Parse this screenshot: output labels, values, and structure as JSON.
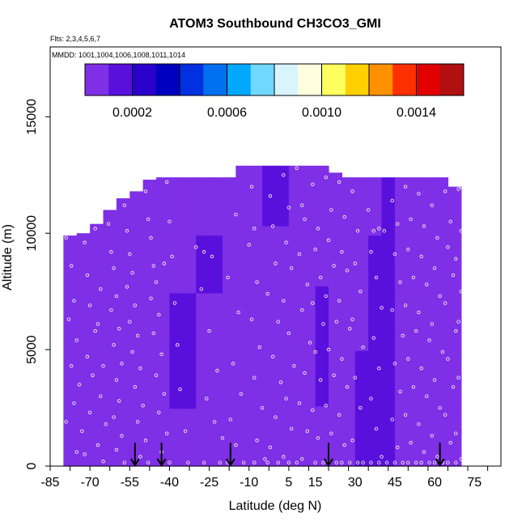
{
  "chart_data": {
    "type": "heatmap",
    "title": "ATOM3 Southbound CH3CO3_GMI",
    "subtitle_flights": "Flts: 2,3,4,5,6,7",
    "subtitle_dates": "MMDD: 1001,1004,1006,1008,1011,1014",
    "xlabel": "Latitude (deg N)",
    "ylabel": "Altitude (m)",
    "xlim": [
      -85,
      85
    ],
    "ylim": [
      0,
      18000
    ],
    "x_ticks": [
      -85,
      -70,
      -55,
      -40,
      -25,
      -10,
      5,
      15,
      30,
      45,
      60,
      75
    ],
    "y_ticks": [
      0,
      5000,
      10000,
      15000
    ],
    "colorbar": {
      "range": [
        0,
        0.0016
      ],
      "tick_values": [
        0.0002,
        0.0006,
        0.001,
        0.0014
      ],
      "tick_labels": [
        "0.0002",
        "0.0006",
        "0.0010",
        "0.0014"
      ],
      "colors": [
        "#7f2fe6",
        "#5a10dc",
        "#2a00cc",
        "#0000c0",
        "#0030e0",
        "#0070f0",
        "#00a8ff",
        "#70d8ff",
        "#d8f4ff",
        "#ffffe0",
        "#ffff60",
        "#ffd000",
        "#ff9000",
        "#ff3000",
        "#e00000",
        "#b01010"
      ]
    },
    "flight_arrow_latitudes": [
      -53,
      -43,
      -17,
      20,
      62
    ],
    "field_columns": [
      {
        "lat": [
          -80,
          -75
        ],
        "top": 9900,
        "values": [
          5e-05,
          5e-05,
          5e-05,
          4e-05,
          5e-05
        ]
      },
      {
        "lat": [
          -75,
          -70
        ],
        "top": 10000,
        "values": [
          5e-05,
          4e-05,
          5e-05,
          5e-05,
          5e-05
        ]
      },
      {
        "lat": [
          -70,
          -65
        ],
        "top": 10400,
        "values": [
          5e-05,
          5e-05,
          5e-05,
          4e-05,
          5e-05
        ]
      },
      {
        "lat": [
          -65,
          -60
        ],
        "top": 11000,
        "values": [
          5e-05,
          5e-05,
          4e-05,
          5e-05,
          5e-05
        ]
      },
      {
        "lat": [
          -60,
          -55
        ],
        "top": 11500,
        "values": [
          5e-05,
          4e-05,
          4e-05,
          5e-05,
          5e-05
        ]
      },
      {
        "lat": [
          -55,
          -50
        ],
        "top": 11800,
        "values": [
          4e-05,
          4e-05,
          5e-05,
          5e-05,
          4e-05
        ]
      },
      {
        "lat": [
          -50,
          -45
        ],
        "top": 12300,
        "values": [
          4e-05,
          5e-05,
          5e-05,
          4e-05,
          4e-05
        ]
      },
      {
        "lat": [
          -45,
          -40
        ],
        "top": 12400,
        "values": [
          4e-05,
          5e-05,
          5e-05,
          5e-05,
          4e-05
        ]
      },
      {
        "lat": [
          -40,
          -35
        ],
        "top": 12400,
        "values": [
          4e-05,
          0.00012,
          0.00014,
          8e-05,
          5e-05
        ]
      },
      {
        "lat": [
          -35,
          -30
        ],
        "top": 12400,
        "values": [
          5e-05,
          0.0001,
          0.00012,
          9e-05,
          6e-05
        ]
      },
      {
        "lat": [
          -30,
          -25
        ],
        "top": 12400,
        "values": [
          5e-05,
          6e-05,
          6e-05,
          0.0001,
          6e-05
        ]
      },
      {
        "lat": [
          -25,
          -20
        ],
        "top": 12400,
        "values": [
          5e-05,
          6e-05,
          5e-05,
          0.00018,
          6e-05
        ]
      },
      {
        "lat": [
          -20,
          -15
        ],
        "top": 12400,
        "values": [
          9e-05,
          6e-05,
          6e-05,
          8e-05,
          6e-05
        ]
      },
      {
        "lat": [
          -15,
          -10
        ],
        "top": 12900,
        "values": [
          6e-05,
          6e-05,
          7e-05,
          7e-05,
          7e-05
        ]
      },
      {
        "lat": [
          -10,
          -5
        ],
        "top": 12900,
        "values": [
          6e-05,
          7e-05,
          7e-05,
          8e-05,
          7e-05
        ]
      },
      {
        "lat": [
          -5,
          0
        ],
        "top": 12900,
        "values": [
          6e-05,
          7e-05,
          8e-05,
          9e-05,
          0.0001
        ]
      },
      {
        "lat": [
          0,
          5
        ],
        "top": 12900,
        "values": [
          6e-05,
          7e-05,
          8e-05,
          9e-05,
          0.0001
        ]
      },
      {
        "lat": [
          5,
          10
        ],
        "top": 12900,
        "values": [
          6e-05,
          7e-05,
          8e-05,
          8e-05,
          9e-05
        ]
      },
      {
        "lat": [
          10,
          15
        ],
        "top": 12900,
        "values": [
          7e-05,
          8e-05,
          9e-05,
          8e-05,
          8e-05
        ]
      },
      {
        "lat": [
          15,
          20
        ],
        "top": 12900,
        "values": [
          8e-05,
          0.0001,
          0.00011,
          9e-05,
          7e-05
        ]
      },
      {
        "lat": [
          20,
          25
        ],
        "top": 12600,
        "values": [
          9e-05,
          8e-05,
          8e-05,
          8e-05,
          6e-05
        ]
      },
      {
        "lat": [
          25,
          30
        ],
        "top": 12400,
        "values": [
          7e-05,
          7e-05,
          7e-05,
          7e-05,
          6e-05
        ]
      },
      {
        "lat": [
          30,
          35
        ],
        "top": 12400,
        "values": [
          0.0001,
          0.0001,
          9e-05,
          8e-05,
          7e-05
        ]
      },
      {
        "lat": [
          35,
          40
        ],
        "top": 12400,
        "values": [
          0.00016,
          0.00014,
          0.00012,
          0.00011,
          9e-05
        ]
      },
      {
        "lat": [
          40,
          45
        ],
        "top": 12400,
        "values": [
          0.00013,
          0.00013,
          0.00012,
          0.00012,
          0.0001
        ]
      },
      {
        "lat": [
          45,
          50
        ],
        "top": 12400,
        "values": [
          7e-05,
          7e-05,
          7e-05,
          7e-05,
          6e-05
        ]
      },
      {
        "lat": [
          50,
          55
        ],
        "top": 12400,
        "values": [
          6e-05,
          6e-05,
          6e-05,
          6e-05,
          5e-05
        ]
      },
      {
        "lat": [
          55,
          60
        ],
        "top": 12400,
        "values": [
          6e-05,
          5e-05,
          5e-05,
          5e-05,
          5e-05
        ]
      },
      {
        "lat": [
          60,
          65
        ],
        "top": 12400,
        "values": [
          5e-05,
          5e-05,
          5e-05,
          5e-05,
          5e-05
        ]
      },
      {
        "lat": [
          65,
          70
        ],
        "top": 12000,
        "values": [
          4e-05,
          4e-05,
          4e-05,
          4e-05,
          4e-05
        ]
      }
    ],
    "observation_points": [
      [
        -79,
        9800
      ],
      [
        -77,
        8600
      ],
      [
        -76,
        7100
      ],
      [
        -78,
        6300
      ],
      [
        -75,
        5400
      ],
      [
        -77,
        4300
      ],
      [
        -74,
        3500
      ],
      [
        -76,
        2700
      ],
      [
        -73,
        1500
      ],
      [
        -75,
        600
      ],
      [
        -79,
        1900
      ],
      [
        -72,
        9600
      ],
      [
        -71,
        8200
      ],
      [
        -70,
        6900
      ],
      [
        -68,
        5800
      ],
      [
        -71,
        4700
      ],
      [
        -69,
        3900
      ],
      [
        -70,
        2300
      ],
      [
        -67,
        900
      ],
      [
        -72,
        500
      ],
      [
        -68,
        10200
      ],
      [
        -66,
        7600
      ],
      [
        -67,
        6100
      ],
      [
        -65,
        4300
      ],
      [
        -66,
        3000
      ],
      [
        -64,
        1800
      ],
      [
        -65,
        200
      ],
      [
        -63,
        10400
      ],
      [
        -62,
        9200
      ],
      [
        -61,
        8500
      ],
      [
        -60,
        7300
      ],
      [
        -62,
        6700
      ],
      [
        -59,
        5900
      ],
      [
        -61,
        5200
      ],
      [
        -58,
        4400
      ],
      [
        -60,
        3700
      ],
      [
        -59,
        2800
      ],
      [
        -61,
        2100
      ],
      [
        -58,
        1300
      ],
      [
        -60,
        700
      ],
      [
        -57,
        150
      ],
      [
        -57,
        11200
      ],
      [
        -56,
        10100
      ],
      [
        -55,
        9100
      ],
      [
        -54,
        8300
      ],
      [
        -56,
        7700
      ],
      [
        -53,
        6900
      ],
      [
        -55,
        6200
      ],
      [
        -52,
        5600
      ],
      [
        -54,
        4900
      ],
      [
        -51,
        4200
      ],
      [
        -53,
        3400
      ],
      [
        -50,
        2600
      ],
      [
        -52,
        1900
      ],
      [
        -49,
        1100
      ],
      [
        -51,
        400
      ],
      [
        -48,
        150
      ],
      [
        -49,
        11800
      ],
      [
        -48,
        10600
      ],
      [
        -47,
        9800
      ],
      [
        -46,
        8600
      ],
      [
        -45,
        7900
      ],
      [
        -47,
        7200
      ],
      [
        -44,
        6500
      ],
      [
        -46,
        5700
      ],
      [
        -43,
        4800
      ],
      [
        -45,
        3900
      ],
      [
        -42,
        3100
      ],
      [
        -44,
        2300
      ],
      [
        -41,
        1400
      ],
      [
        -43,
        600
      ],
      [
        -40,
        150
      ],
      [
        -41,
        12200
      ],
      [
        -40,
        10500
      ],
      [
        -39,
        9000
      ],
      [
        -42,
        8700
      ],
      [
        -38,
        7000
      ],
      [
        -37,
        5200
      ],
      [
        -36,
        3300
      ],
      [
        -34,
        1500
      ],
      [
        -33,
        150
      ],
      [
        -30,
        9400
      ],
      [
        -27,
        9200
      ],
      [
        -24,
        9000
      ],
      [
        -28,
        7600
      ],
      [
        -25,
        5800
      ],
      [
        -22,
        4100
      ],
      [
        -26,
        2900
      ],
      [
        -23,
        1900
      ],
      [
        -20,
        1200
      ],
      [
        -27,
        150
      ],
      [
        -21,
        150
      ],
      [
        -17,
        12500
      ],
      [
        -15,
        10800
      ],
      [
        -18,
        8100
      ],
      [
        -14,
        6600
      ],
      [
        -16,
        4400
      ],
      [
        -13,
        3100
      ],
      [
        -17,
        2000
      ],
      [
        -15,
        900
      ],
      [
        -12,
        150
      ],
      [
        -18,
        150
      ],
      [
        -9,
        12000
      ],
      [
        -8,
        10200
      ],
      [
        -10,
        9500
      ],
      [
        -7,
        7900
      ],
      [
        -9,
        6300
      ],
      [
        -6,
        5100
      ],
      [
        -8,
        3800
      ],
      [
        -5,
        2500
      ],
      [
        -7,
        1100
      ],
      [
        -4,
        300
      ],
      [
        -8,
        150
      ],
      [
        -2,
        11600
      ],
      [
        -1,
        10300
      ],
      [
        0,
        8700
      ],
      [
        -3,
        7400
      ],
      [
        1,
        6200
      ],
      [
        -1,
        4700
      ],
      [
        2,
        3600
      ],
      [
        0,
        2100
      ],
      [
        -2,
        800
      ],
      [
        1,
        150
      ],
      [
        -3,
        150
      ],
      [
        3,
        12500
      ],
      [
        5,
        11100
      ],
      [
        4,
        9600
      ],
      [
        6,
        8500
      ],
      [
        3,
        7100
      ],
      [
        5,
        5700
      ],
      [
        7,
        4300
      ],
      [
        4,
        2900
      ],
      [
        6,
        1600
      ],
      [
        3,
        400
      ],
      [
        5,
        150
      ],
      [
        8,
        12800
      ],
      [
        10,
        11200
      ],
      [
        11,
        10600
      ],
      [
        9,
        9100
      ],
      [
        12,
        7800
      ],
      [
        10,
        6700
      ],
      [
        13,
        5300
      ],
      [
        11,
        4000
      ],
      [
        9,
        2700
      ],
      [
        12,
        1500
      ],
      [
        10,
        300
      ],
      [
        8,
        150
      ],
      [
        14,
        12100
      ],
      [
        16,
        10200
      ],
      [
        15,
        9300
      ],
      [
        17,
        8100
      ],
      [
        14,
        7000
      ],
      [
        18,
        6100
      ],
      [
        15,
        4900
      ],
      [
        17,
        3700
      ],
      [
        14,
        2400
      ],
      [
        16,
        1200
      ],
      [
        15,
        150
      ],
      [
        18,
        150
      ],
      [
        19,
        12400
      ],
      [
        21,
        11000
      ],
      [
        20,
        9700
      ],
      [
        22,
        8600
      ],
      [
        19,
        7300
      ],
      [
        23,
        6200
      ],
      [
        20,
        5000
      ],
      [
        22,
        3900
      ],
      [
        19,
        2600
      ],
      [
        21,
        1400
      ],
      [
        20,
        150
      ],
      [
        23,
        150
      ],
      [
        24,
        12200
      ],
      [
        26,
        10700
      ],
      [
        25,
        9200
      ],
      [
        27,
        8400
      ],
      [
        24,
        7100
      ],
      [
        28,
        5900
      ],
      [
        25,
        4600
      ],
      [
        27,
        3400
      ],
      [
        24,
        2200
      ],
      [
        26,
        900
      ],
      [
        25,
        150
      ],
      [
        28,
        150
      ],
      [
        29,
        11800
      ],
      [
        31,
        10100
      ],
      [
        30,
        8700
      ],
      [
        32,
        7500
      ],
      [
        29,
        6300
      ],
      [
        33,
        5100
      ],
      [
        30,
        3800
      ],
      [
        32,
        2500
      ],
      [
        29,
        1100
      ],
      [
        31,
        150
      ],
      [
        33,
        150
      ],
      [
        35,
        11000
      ],
      [
        37,
        10100
      ],
      [
        39,
        10200
      ],
      [
        41,
        10100
      ],
      [
        36,
        9200
      ],
      [
        38,
        8100
      ],
      [
        40,
        6800
      ],
      [
        37,
        5500
      ],
      [
        39,
        4200
      ],
      [
        36,
        2900
      ],
      [
        38,
        1600
      ],
      [
        40,
        400
      ],
      [
        36,
        150
      ],
      [
        39,
        150
      ],
      [
        42,
        150
      ],
      [
        44,
        11400
      ],
      [
        46,
        10400
      ],
      [
        45,
        9100
      ],
      [
        47,
        7900
      ],
      [
        44,
        6700
      ],
      [
        48,
        5600
      ],
      [
        45,
        4400
      ],
      [
        47,
        3200
      ],
      [
        44,
        2000
      ],
      [
        46,
        800
      ],
      [
        45,
        150
      ],
      [
        48,
        150
      ],
      [
        49,
        12000
      ],
      [
        51,
        10600
      ],
      [
        50,
        9300
      ],
      [
        52,
        8100
      ],
      [
        49,
        6900
      ],
      [
        53,
        5800
      ],
      [
        50,
        4600
      ],
      [
        52,
        3400
      ],
      [
        49,
        2200
      ],
      [
        51,
        1000
      ],
      [
        50,
        150
      ],
      [
        53,
        150
      ],
      [
        54,
        11700
      ],
      [
        56,
        10300
      ],
      [
        55,
        9000
      ],
      [
        57,
        7800
      ],
      [
        54,
        6600
      ],
      [
        58,
        5400
      ],
      [
        55,
        4200
      ],
      [
        57,
        3000
      ],
      [
        54,
        1800
      ],
      [
        56,
        600
      ],
      [
        55,
        150
      ],
      [
        58,
        150
      ],
      [
        59,
        11200
      ],
      [
        61,
        9800
      ],
      [
        60,
        8500
      ],
      [
        62,
        7300
      ],
      [
        59,
        6100
      ],
      [
        63,
        4900
      ],
      [
        60,
        3700
      ],
      [
        62,
        2500
      ],
      [
        59,
        1300
      ],
      [
        61,
        400
      ],
      [
        60,
        150
      ],
      [
        63,
        150
      ],
      [
        64,
        11800
      ],
      [
        66,
        10500
      ],
      [
        65,
        9400
      ],
      [
        67,
        8200
      ],
      [
        64,
        7000
      ],
      [
        68,
        5800
      ],
      [
        65,
        4600
      ],
      [
        67,
        3400
      ],
      [
        64,
        2200
      ],
      [
        66,
        1000
      ],
      [
        65,
        150
      ],
      [
        68,
        150
      ],
      [
        69,
        11900
      ],
      [
        70,
        10100
      ],
      [
        68,
        8900
      ],
      [
        70,
        7500
      ],
      [
        69,
        6200
      ],
      [
        71,
        5000
      ],
      [
        69,
        3800
      ],
      [
        71,
        2600
      ],
      [
        68,
        1400
      ],
      [
        70,
        300
      ],
      [
        71,
        1800
      ],
      [
        70,
        12000
      ]
    ]
  }
}
